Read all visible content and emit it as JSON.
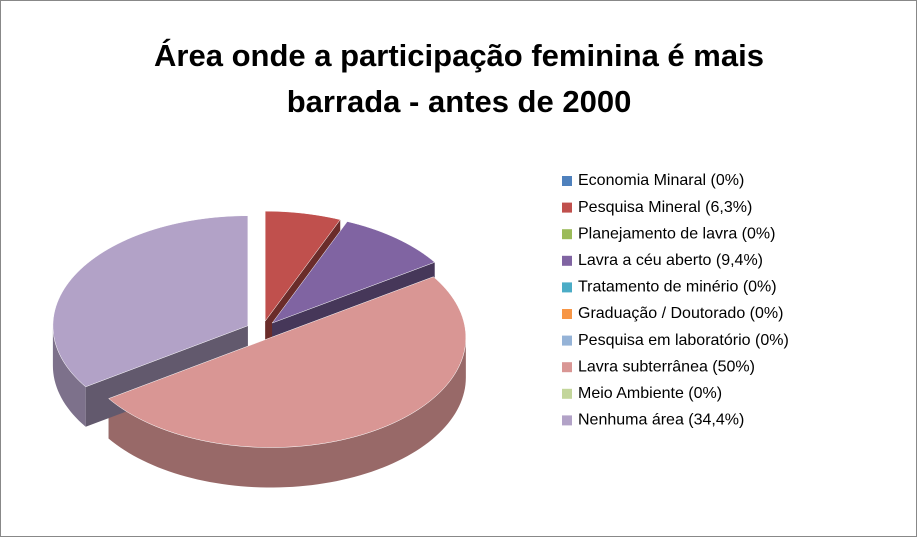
{
  "chart_data": {
    "type": "pie3d",
    "title": [
      "Área onde a participação feminina é mais",
      "barrada - antes de 2000"
    ],
    "categories": [
      "Economia Minaral (0%)",
      "Pesquisa Mineral (6,3%)",
      "Planejamento de lavra (0%)",
      "Lavra a céu aberto (9,4%)",
      "Tratamento de minério (0%)",
      "Graduação / Doutorado (0%)",
      "Pesquisa em laboratório (0%)",
      "Lavra subterrânea (50%)",
      "Meio Ambiente (0%)",
      "Nenhuma área (34,4%)"
    ],
    "values": [
      0,
      6.3,
      0,
      9.4,
      0,
      0,
      0,
      50,
      0,
      34.4
    ],
    "colors": [
      "#4f81bd",
      "#c0504d",
      "#9bbb59",
      "#8064a2",
      "#4bacc6",
      "#f79646",
      "#95b3d7",
      "#d99694",
      "#c3d69b",
      "#b2a2c7"
    ],
    "legend": "right"
  }
}
